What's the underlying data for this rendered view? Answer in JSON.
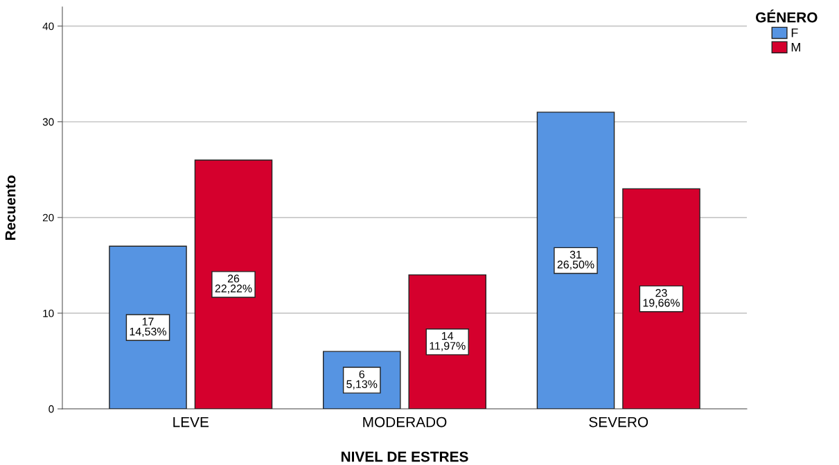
{
  "chart_data": {
    "type": "bar",
    "xlabel": "NIVEL DE ESTRES",
    "ylabel": "Recuento",
    "legend_title": "GÉNERO",
    "categories": [
      "LEVE",
      "MODERADO",
      "SEVERO"
    ],
    "series": [
      {
        "name": "F",
        "color": "#5694e2",
        "values": [
          17,
          6,
          31
        ],
        "value_labels": [
          "17\n14,53%",
          "6\n5,13%",
          "31\n26,50%"
        ]
      },
      {
        "name": "M",
        "color": "#d5002d",
        "values": [
          26,
          14,
          23
        ],
        "value_labels": [
          "26\n22,22%",
          "14\n11,97%",
          "23\n19,66%"
        ]
      }
    ],
    "ylim": [
      0,
      42
    ],
    "yticks": [
      0,
      10,
      20,
      30,
      40
    ],
    "grid": "y",
    "legend": "top right"
  }
}
